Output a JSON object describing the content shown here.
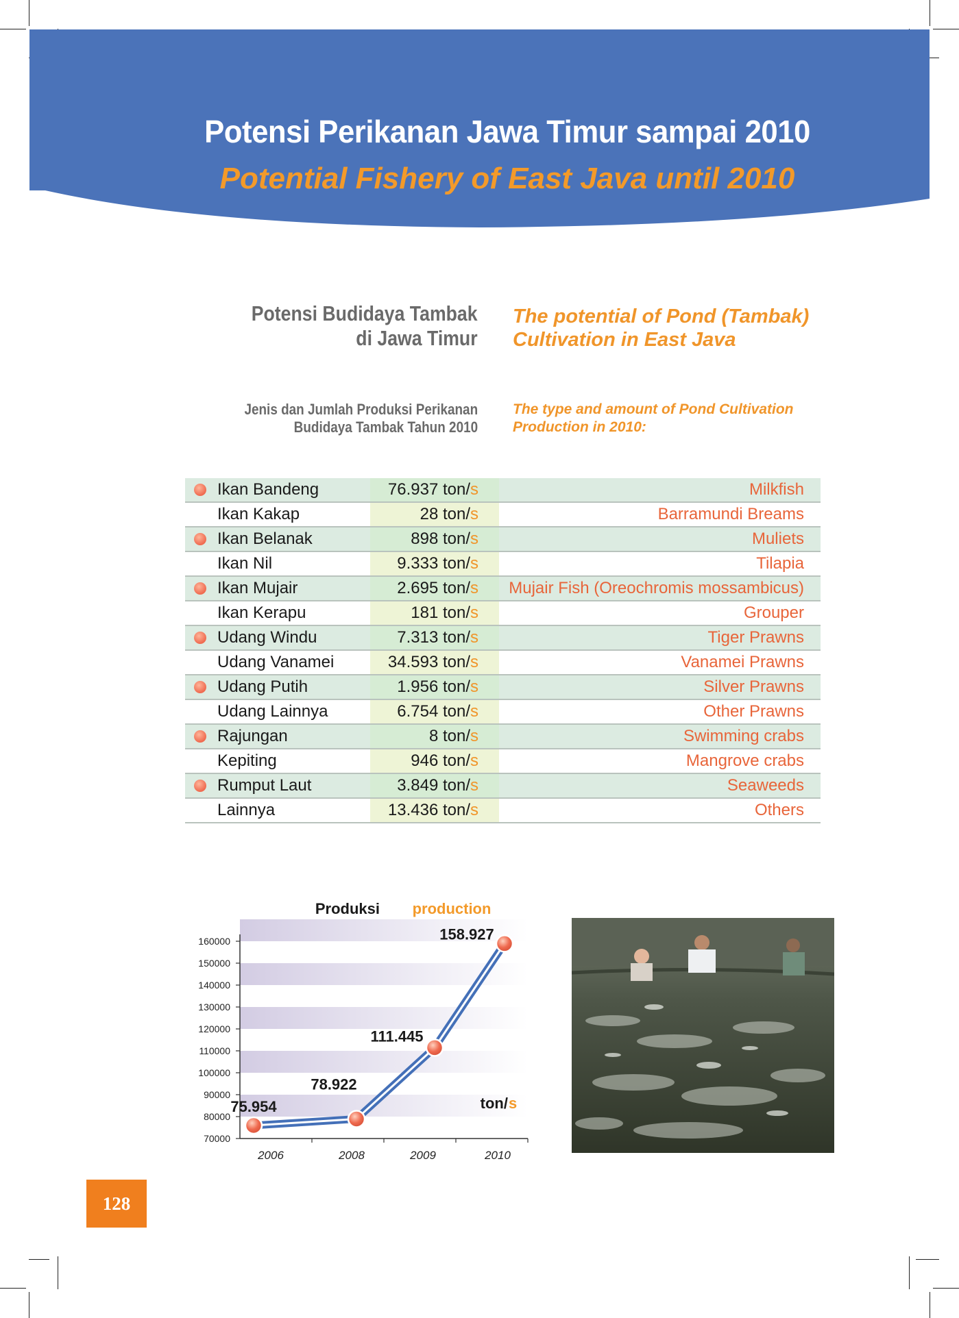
{
  "header": {
    "title_id": "Potensi Perikanan Jawa Timur sampai 2010",
    "title_en": "Potential Fishery of East Java until 2010",
    "band_color": "#4b73b9",
    "accent_color": "#f39a2a"
  },
  "section": {
    "heading_id_line1": "Potensi Budidaya Tambak",
    "heading_id_line2": "di Jawa Timur",
    "heading_en_line1": "The potential of Pond (Tambak)",
    "heading_en_line2": "Cultivation in East Java",
    "subheading_id_line1": "Jenis dan Jumlah Produksi Perikanan",
    "subheading_id_line2": "Budidaya Tambak Tahun 2010",
    "subheading_en_line1": "The type and amount of Pond Cultivation",
    "subheading_en_line2": "Production in 2010:"
  },
  "table": {
    "unit_prefix": " ton/",
    "unit_suffix": "s",
    "rows": [
      {
        "name": "Ikan Bandeng",
        "amount": "76.937",
        "english": "Milkfish"
      },
      {
        "name": "Ikan Kakap",
        "amount": "28",
        "english": "Barramundi Breams"
      },
      {
        "name": "Ikan Belanak",
        "amount": "898",
        "english": "Muliets"
      },
      {
        "name": "Ikan Nil",
        "amount": "9.333",
        "english": "Tilapia"
      },
      {
        "name": "Ikan Mujair",
        "amount": "2.695",
        "english": "Mujair Fish (Oreochromis mossambicus)"
      },
      {
        "name": "Ikan Kerapu",
        "amount": "181",
        "english": "Grouper"
      },
      {
        "name": "Udang Windu",
        "amount": "7.313",
        "english": "Tiger Prawns"
      },
      {
        "name": "Udang Vanamei",
        "amount": "34.593",
        "english": "Vanamei Prawns"
      },
      {
        "name": "Udang Putih",
        "amount": "1.956",
        "english": "Silver Prawns"
      },
      {
        "name": "Udang Lainnya",
        "amount": "6.754",
        "english": "Other Prawns"
      },
      {
        "name": "Rajungan",
        "amount": "8",
        "english": "Swimming crabs"
      },
      {
        "name": "Kepiting",
        "amount": "946",
        "english": "Mangrove crabs"
      },
      {
        "name": "Rumput Laut",
        "amount": "3.849",
        "english": "Seaweeds"
      },
      {
        "name": "Lainnya",
        "amount": "13.436",
        "english": "Others"
      }
    ]
  },
  "chart_data": {
    "type": "line",
    "title_part1": "Produksi",
    "title_part2": "production",
    "unit_main": "ton/",
    "unit_s": "s",
    "x": [
      "2006",
      "2008",
      "2009",
      "2010"
    ],
    "values": [
      75954,
      78922,
      111445,
      158927
    ],
    "data_labels": [
      "75.954",
      "78.922",
      "111.445",
      "158.927"
    ],
    "y_ticks": [
      "70000",
      "80000",
      "90000",
      "100000",
      "110000",
      "120000",
      "130000",
      "140000",
      "150000",
      "160000"
    ],
    "ylim": [
      70000,
      160000
    ],
    "line_color": "#4470b8",
    "marker_color": "#ef6a4f"
  },
  "page": {
    "number": "128"
  }
}
